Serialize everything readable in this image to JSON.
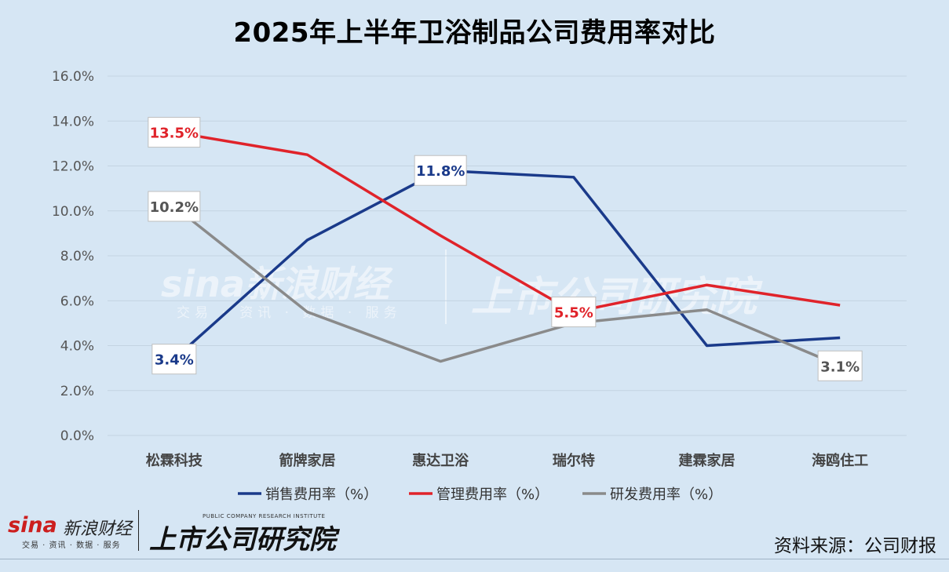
{
  "chart_data": {
    "type": "line",
    "title": "2025年上半年卫浴制品公司费用率对比",
    "categories": [
      "松霖科技",
      "箭牌家居",
      "惠达卫浴",
      "瑞尔特",
      "建霖家居",
      "海鸥住工"
    ],
    "y_ticks": [
      "0.0%",
      "2.0%",
      "4.0%",
      "6.0%",
      "8.0%",
      "10.0%",
      "12.0%",
      "14.0%",
      "16.0%"
    ],
    "ylim": [
      0,
      16
    ],
    "grid": true,
    "legend_position": "bottom",
    "series": [
      {
        "name": "销售费用率（%）",
        "color": "#1a3a8a",
        "values": [
          3.4,
          8.7,
          11.8,
          11.5,
          4.0,
          4.35
        ],
        "labels": [
          {
            "index": 0,
            "text": "3.4%"
          },
          {
            "index": 2,
            "text": "11.8%"
          }
        ]
      },
      {
        "name": "管理费用率（%）",
        "color": "#e0232a",
        "values": [
          13.5,
          12.5,
          8.9,
          5.5,
          6.7,
          5.8
        ],
        "labels": [
          {
            "index": 0,
            "text": "13.5%"
          },
          {
            "index": 3,
            "text": "5.5%"
          }
        ]
      },
      {
        "name": "研发费用率（%）",
        "color": "#8a8a8a",
        "values": [
          10.2,
          5.5,
          3.3,
          5.0,
          5.6,
          3.1
        ],
        "labels": [
          {
            "index": 0,
            "text": "10.2%"
          },
          {
            "index": 5,
            "text": "3.1%"
          }
        ]
      }
    ]
  },
  "watermark": {
    "sina": "sina新浪财经",
    "sub": "交易 · 资讯 · 数据 · 服务",
    "brand": "上市公司研究院"
  },
  "footer": {
    "logo_sina": "sina",
    "logo_sina_cn": "新浪财经",
    "logo_tagline": "交易 · 资讯 · 数据 · 服务",
    "logo_brand": "上市公司研究院",
    "logo_brand_en": "PUBLIC COMPANY RESEARCH INSTITUTE",
    "source": "资料来源：公司财报"
  }
}
